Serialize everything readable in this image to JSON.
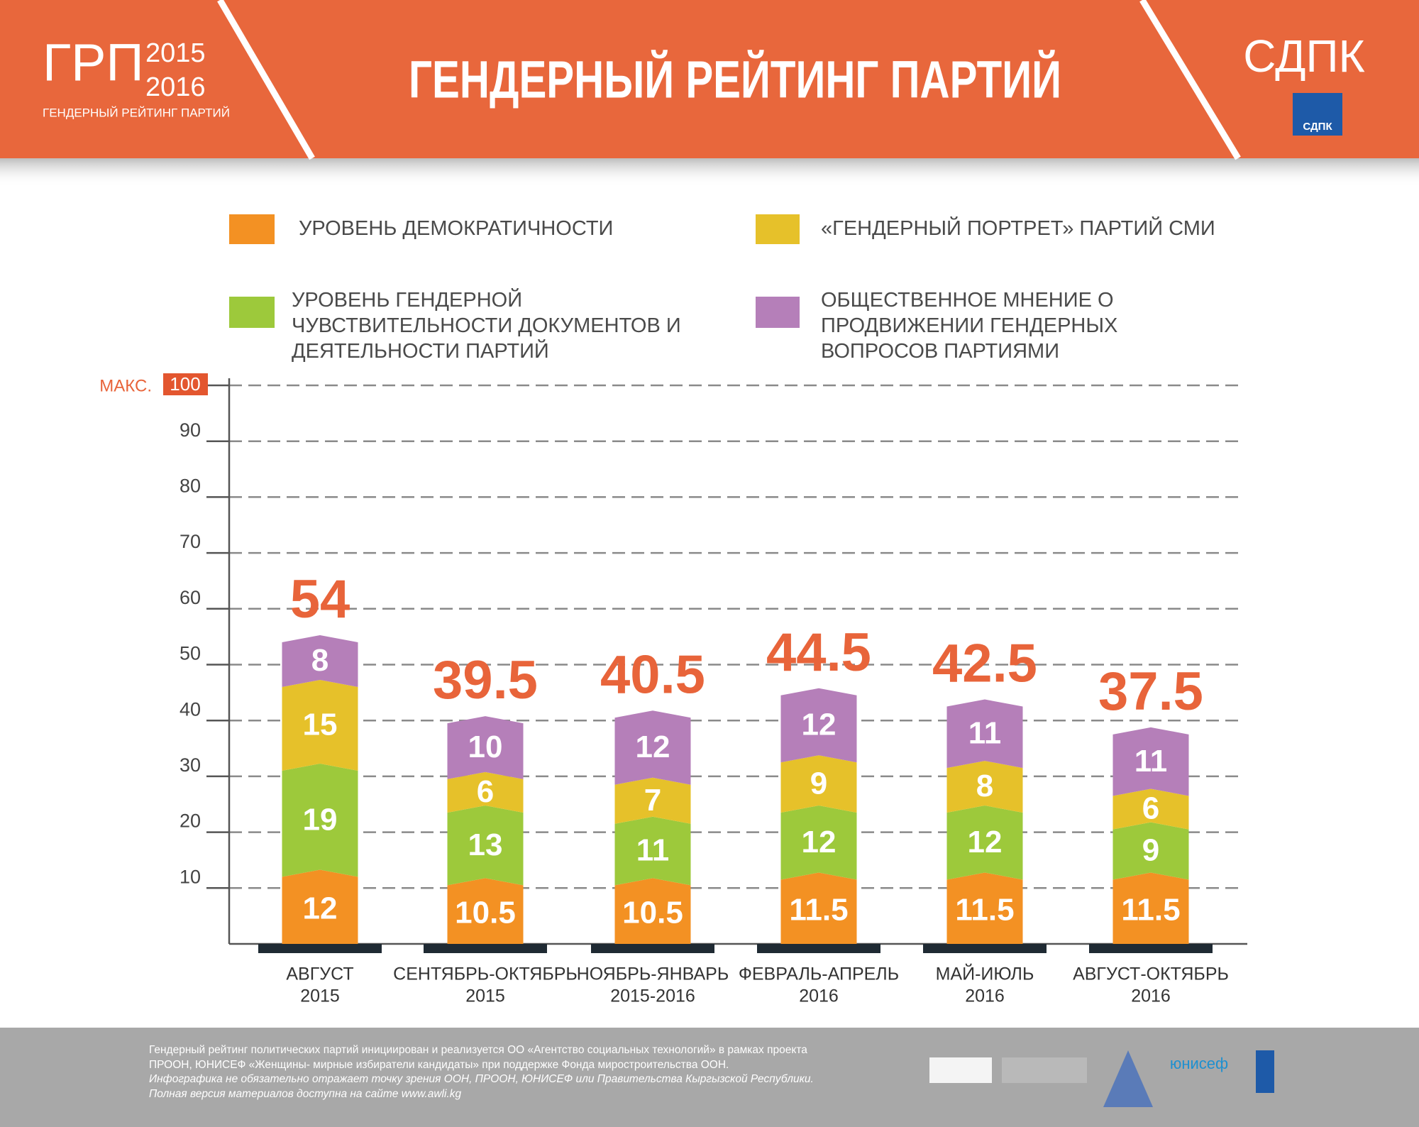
{
  "header": {
    "logo_main": "ГРП",
    "logo_year1": "2015",
    "logo_year2": "2016",
    "logo_sub": "ГЕНДЕРНЫЙ РЕЙТИНГ ПАРТИЙ",
    "party": "СДПК",
    "party_badge": "СДПК"
  },
  "chart_data": {
    "type": "stacked_bar",
    "title": "ГЕНДЕРНЫЙ РЕЙТИНГ ПАРТИЙ",
    "categories": [
      [
        "АВГУСТ",
        "2015"
      ],
      [
        "СЕНТЯБРЬ-ОКТЯБРЬ",
        "2015"
      ],
      [
        "НОЯБРЬ-ЯНВАРЬ",
        "2015-2016"
      ],
      [
        "ФЕВРАЛЬ-АПРЕЛЬ",
        "2016"
      ],
      [
        "МАЙ-ИЮЛЬ",
        "2016"
      ],
      [
        "АВГУСТ-ОКТЯБРЬ",
        "2016"
      ]
    ],
    "series": [
      {
        "name": "УРОВЕНЬ ДЕМОКРАТИЧНОСТИ",
        "color": "#f39123",
        "values": [
          12,
          10.5,
          10.5,
          11.5,
          11.5,
          11.5
        ]
      },
      {
        "name": "УРОВЕНЬ ГЕНДЕРНОЙ ЧУВСТВИТЕЛЬНОСТИ ДОКУМЕНТОВ И ДЕЯТЕЛЬНОСТИ ПАРТИЙ",
        "color": "#9dc93b",
        "values": [
          19,
          13,
          11,
          12,
          12,
          9
        ]
      },
      {
        "name": "«ГЕНДЕРНЫЙ ПОРТРЕТ» ПАРТИЙ СМИ",
        "color": "#e6c12a",
        "values": [
          15,
          6,
          7,
          9,
          8,
          6
        ]
      },
      {
        "name": "ОБЩЕСТВЕННОЕ МНЕНИЕ О ПРОДВИЖЕНИИ ГЕНДЕРНЫХ ВОПРОСОВ ПАРТИЯМИ",
        "color": "#b57fb9",
        "values": [
          8,
          10,
          12,
          12,
          11,
          11
        ]
      }
    ],
    "totals": [
      54,
      39.5,
      40.5,
      44.5,
      42.5,
      37.5
    ],
    "ylim": [
      0,
      100
    ],
    "yticks": [
      10,
      20,
      30,
      40,
      50,
      60,
      70,
      80,
      90,
      100
    ],
    "ymax_label": "МАКС.",
    "grid": true
  },
  "footer": {
    "lines": [
      "Гендерный рейтинг политических партий инициирован и реализуется ОО «Агентство социальных технологий» в рамках проекта",
      "ПРООН, ЮНИСЕФ «Женщины- мирные избиратели кандидаты» при поддержке Фонда миростроительства ООН.",
      "Инфографика не обязательно отражает точку зрения ООН, ПРООН, ЮНИСЕФ или Правительства Кыргызской Республики.",
      "Полная версия материалов доступна на сайте www.awli.kg"
    ],
    "unicef": "юнисеф"
  }
}
